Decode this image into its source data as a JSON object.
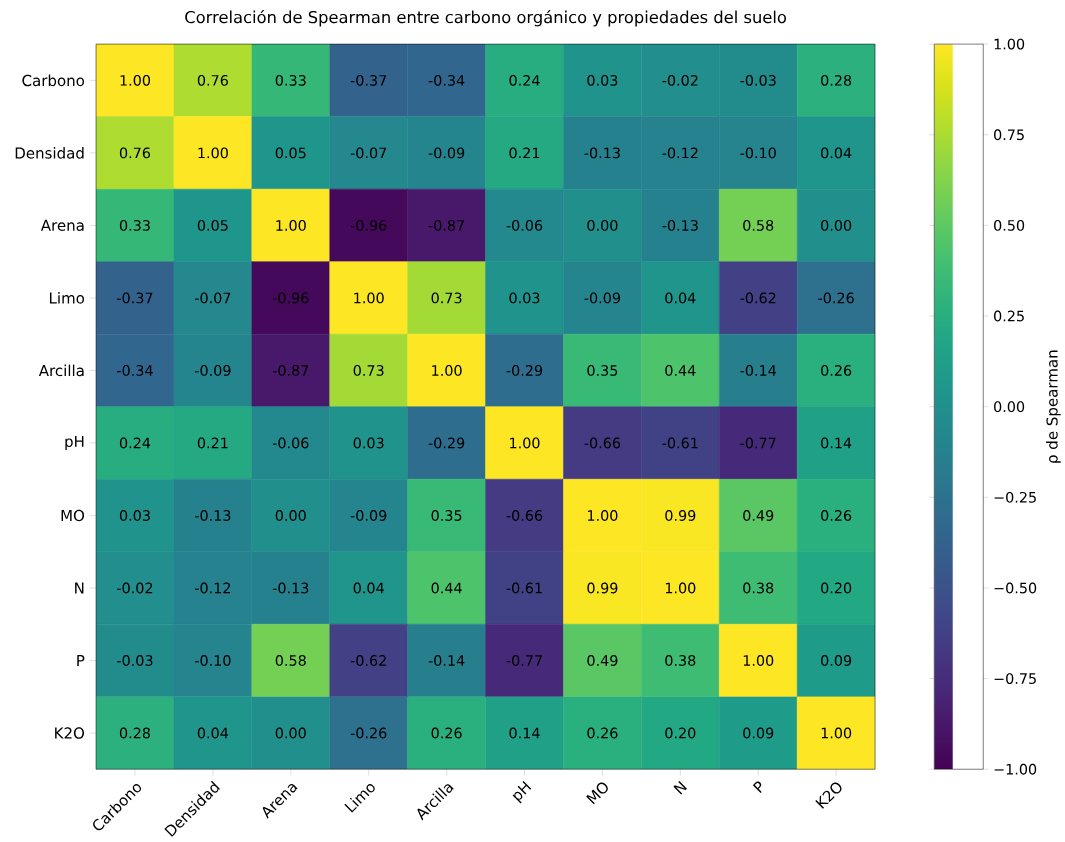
{
  "chart_data": {
    "type": "heatmap",
    "title": "Correlación de Spearman entre carbono orgánico y propiedades del suelo",
    "categories": [
      "Carbono",
      "Densidad",
      "Arena",
      "Limo",
      "Arcilla",
      "pH",
      "MO",
      "N",
      "P",
      "K2O"
    ],
    "y_categories": [
      "Carbono",
      "Densidad",
      "Arena",
      "Limo",
      "Arcilla",
      "pH",
      "MO",
      "N",
      "P",
      "K2O"
    ],
    "cells": [
      [
        1.0,
        0.76,
        0.33,
        -0.37,
        -0.34,
        0.24,
        0.03,
        -0.02,
        -0.03,
        0.28
      ],
      [
        0.76,
        1.0,
        0.05,
        -0.07,
        -0.09,
        0.21,
        -0.13,
        -0.12,
        -0.1,
        0.04
      ],
      [
        0.33,
        0.05,
        1.0,
        -0.96,
        -0.87,
        -0.06,
        0.0,
        -0.13,
        0.58,
        0.0
      ],
      [
        -0.37,
        -0.07,
        -0.96,
        1.0,
        0.73,
        0.03,
        -0.09,
        0.04,
        -0.62,
        -0.26
      ],
      [
        -0.34,
        -0.09,
        -0.87,
        0.73,
        1.0,
        -0.29,
        0.35,
        0.44,
        -0.14,
        0.26
      ],
      [
        0.24,
        0.21,
        -0.06,
        0.03,
        -0.29,
        1.0,
        -0.66,
        -0.61,
        -0.77,
        0.14
      ],
      [
        0.03,
        -0.13,
        0.0,
        -0.09,
        0.35,
        -0.66,
        1.0,
        0.99,
        0.49,
        0.26
      ],
      [
        -0.02,
        -0.12,
        -0.13,
        0.04,
        0.44,
        -0.61,
        0.99,
        1.0,
        0.38,
        0.2
      ],
      [
        -0.03,
        -0.1,
        0.58,
        -0.62,
        -0.14,
        -0.77,
        0.49,
        0.38,
        1.0,
        0.09
      ],
      [
        0.28,
        0.04,
        0.0,
        -0.26,
        0.26,
        0.14,
        0.26,
        0.2,
        0.09,
        1.0
      ]
    ],
    "cell_labels": [
      [
        "1.00",
        "0.76",
        "0.33",
        "-0.37",
        "-0.34",
        "0.24",
        "0.03",
        "-0.02",
        "-0.03",
        "0.28"
      ],
      [
        "0.76",
        "1.00",
        "0.05",
        "-0.07",
        "-0.09",
        "0.21",
        "-0.13",
        "-0.12",
        "-0.10",
        "0.04"
      ],
      [
        "0.33",
        "0.05",
        "1.00",
        "-0.96",
        "-0.87",
        "-0.06",
        "0.00",
        "-0.13",
        "0.58",
        "0.00"
      ],
      [
        "-0.37",
        "-0.07",
        "-0.96",
        "1.00",
        "0.73",
        "0.03",
        "-0.09",
        "0.04",
        "-0.62",
        "-0.26"
      ],
      [
        "-0.34",
        "-0.09",
        "-0.87",
        "0.73",
        "1.00",
        "-0.29",
        "0.35",
        "0.44",
        "-0.14",
        "0.26"
      ],
      [
        "0.24",
        "0.21",
        "-0.06",
        "0.03",
        "-0.29",
        "1.00",
        "-0.66",
        "-0.61",
        "-0.77",
        "0.14"
      ],
      [
        "0.03",
        "-0.13",
        "0.00",
        "-0.09",
        "0.35",
        "-0.66",
        "1.00",
        "0.99",
        "0.49",
        "0.26"
      ],
      [
        "-0.02",
        "-0.12",
        "-0.13",
        "0.04",
        "0.44",
        "-0.61",
        "0.99",
        "1.00",
        "0.38",
        "0.20"
      ],
      [
        "-0.03",
        "-0.10",
        "0.58",
        "-0.62",
        "-0.14",
        "-0.77",
        "0.49",
        "0.38",
        "1.00",
        "0.09"
      ],
      [
        "0.28",
        "0.04",
        "0.00",
        "-0.26",
        "0.26",
        "0.14",
        "0.26",
        "0.20",
        "0.09",
        "1.00"
      ]
    ],
    "clabel": "ρ de Spearman",
    "clim": [
      -1,
      1
    ],
    "cticks": [
      {
        "value": -1,
        "label": "−1.00"
      },
      {
        "value": -0.75,
        "label": "−0.75"
      },
      {
        "value": -0.5,
        "label": "−0.50"
      },
      {
        "value": -0.25,
        "label": "−0.25"
      },
      {
        "value": 0,
        "label": "0.00"
      },
      {
        "value": 0.25,
        "label": "0.25"
      },
      {
        "value": 0.5,
        "label": "0.50"
      },
      {
        "value": 0.75,
        "label": "0.75"
      },
      {
        "value": 1,
        "label": "1.00"
      }
    ]
  }
}
